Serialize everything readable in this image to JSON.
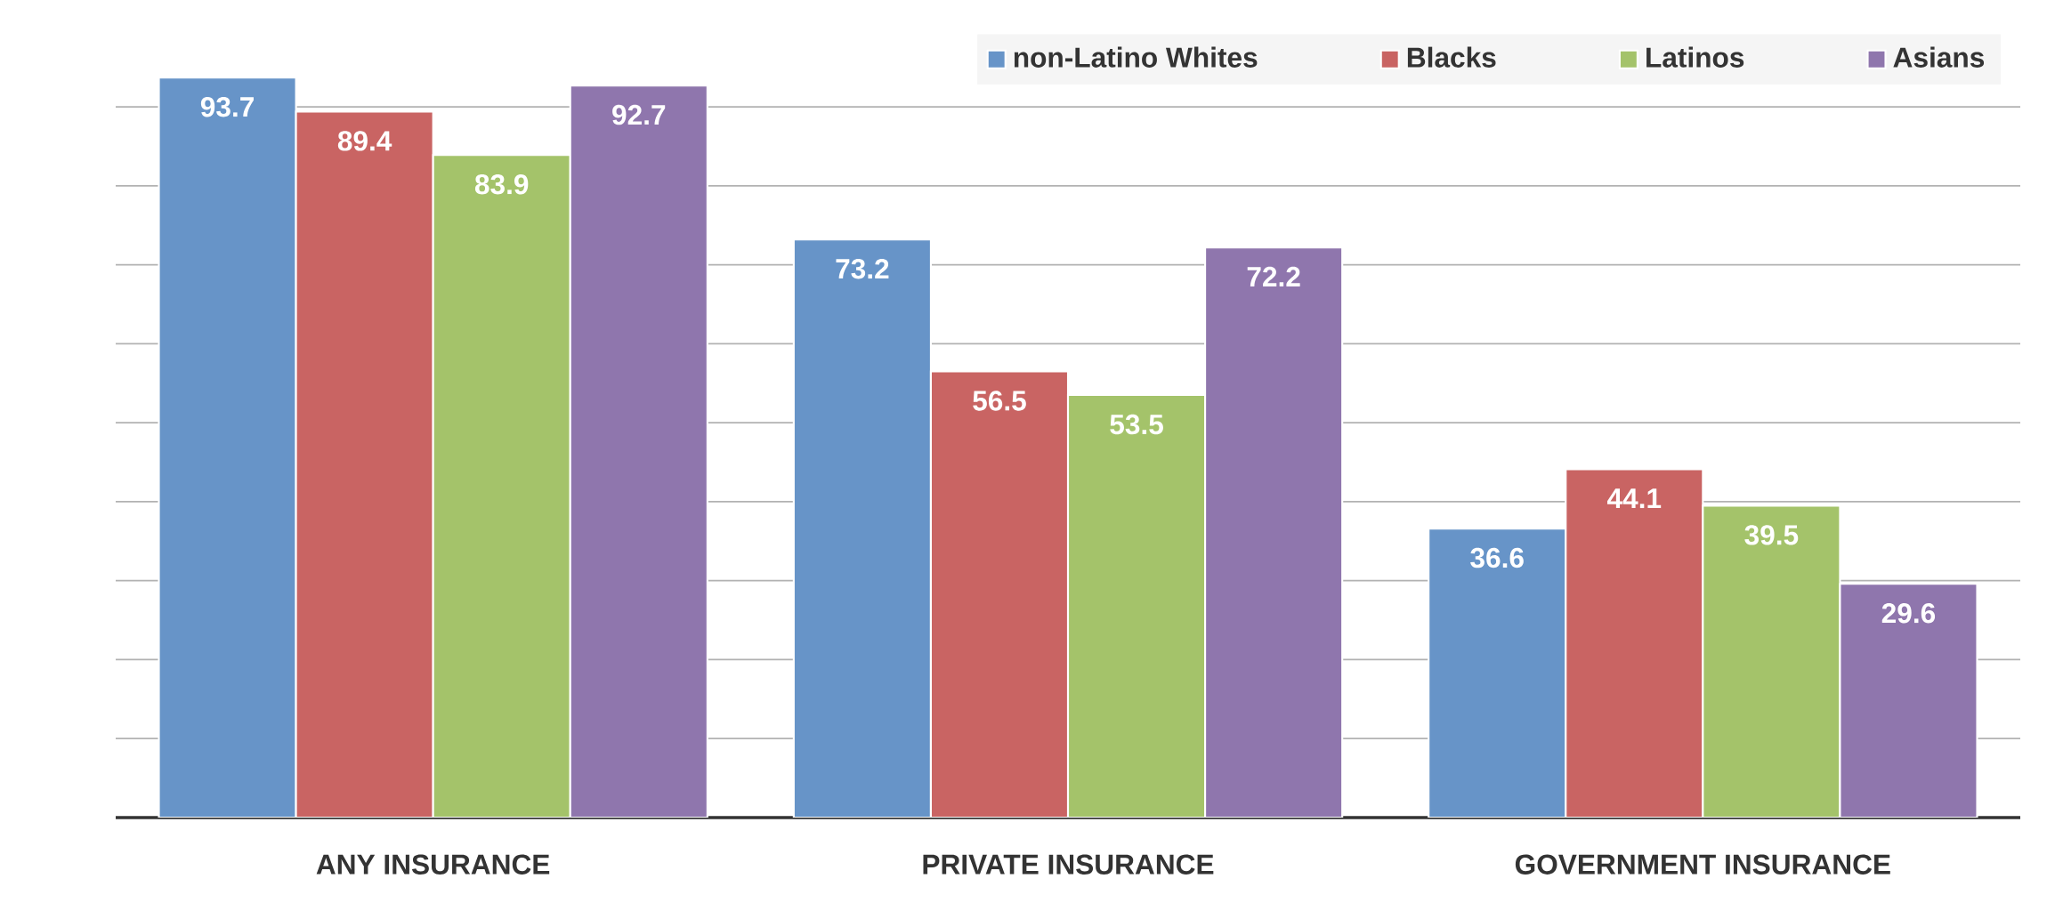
{
  "chart_data": {
    "type": "bar",
    "categories": [
      "ANY INSURANCE",
      "PRIVATE INSURANCE",
      "GOVERNMENT INSURANCE"
    ],
    "series": [
      {
        "name": "non-Latino Whites",
        "color": "#6794c8",
        "values": [
          93.7,
          73.2,
          36.6
        ]
      },
      {
        "name": "Blacks",
        "color": "#c96463",
        "values": [
          89.4,
          56.5,
          44.1
        ]
      },
      {
        "name": "Latinos",
        "color": "#a4c36a",
        "values": [
          83.9,
          53.5,
          39.5
        ]
      },
      {
        "name": "Asians",
        "color": "#8f76ad",
        "values": [
          92.7,
          72.2,
          29.6
        ]
      }
    ],
    "yticks": [
      {
        "value": 0,
        "label": null
      },
      {
        "value": 10,
        "label": null
      },
      {
        "value": 20,
        "label": null
      },
      {
        "value": 30,
        "label": null
      },
      {
        "value": 40,
        "label": null
      },
      {
        "value": 50,
        "label": null
      },
      {
        "value": 60,
        "label": null
      },
      {
        "value": 70,
        "label": null
      },
      {
        "value": 80,
        "label": null
      },
      {
        "value": 90,
        "label": null
      }
    ],
    "grid": "y",
    "legend": "top right",
    "tick_labels": "x",
    "data_labels": true
  }
}
